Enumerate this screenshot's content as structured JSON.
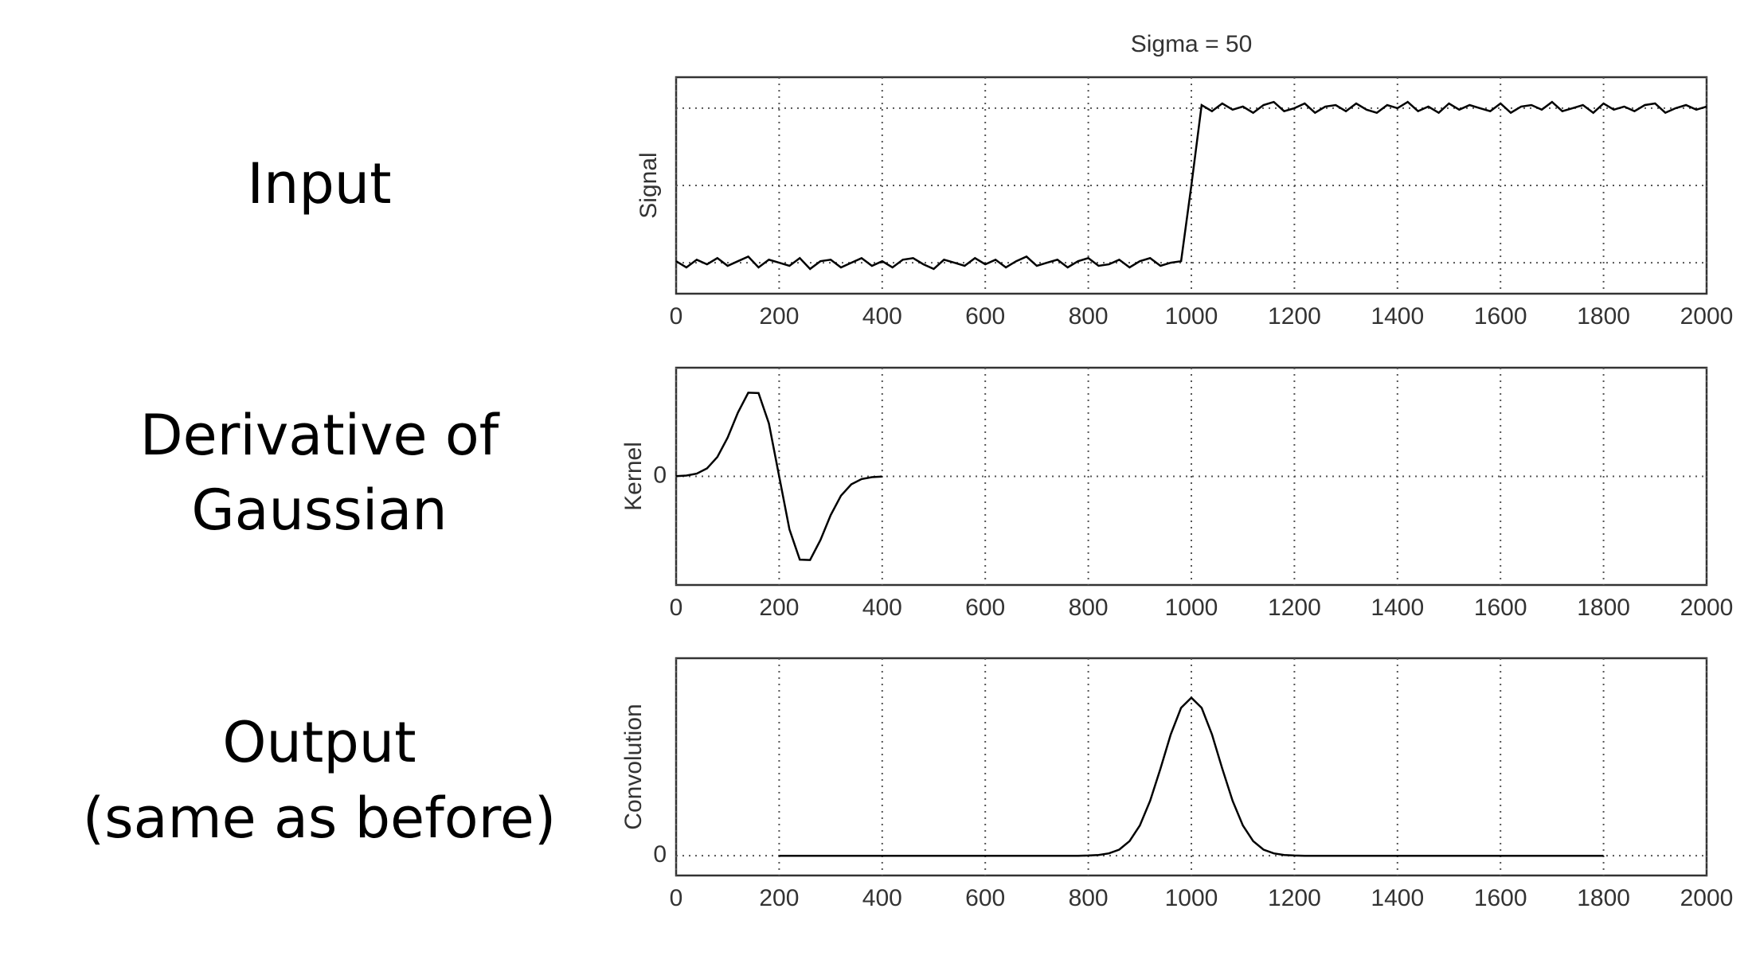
{
  "row_labels": [
    [
      "Input"
    ],
    [
      "Derivative of",
      "Gaussian"
    ],
    [
      "Output",
      "(same as before)"
    ]
  ],
  "chart_data": [
    {
      "type": "line",
      "title": "Sigma = 50",
      "ylabel": "Signal",
      "color": "#000000",
      "grid": true,
      "xlim": [
        0,
        2000
      ],
      "xticks": [
        0,
        200,
        400,
        600,
        800,
        1000,
        1200,
        1400,
        1600,
        1800,
        2000
      ],
      "ylim": [
        -0.2,
        1.2
      ],
      "ygrid": [
        0,
        0.5,
        1
      ],
      "x": [
        0,
        20,
        40,
        60,
        80,
        100,
        120,
        140,
        160,
        180,
        200,
        220,
        240,
        260,
        280,
        300,
        320,
        340,
        360,
        380,
        400,
        420,
        440,
        460,
        480,
        500,
        520,
        540,
        560,
        580,
        600,
        620,
        640,
        660,
        680,
        700,
        720,
        740,
        760,
        780,
        800,
        820,
        840,
        860,
        880,
        900,
        920,
        940,
        960,
        980,
        1000,
        1020,
        1040,
        1060,
        1080,
        1100,
        1120,
        1140,
        1160,
        1180,
        1200,
        1220,
        1240,
        1260,
        1280,
        1300,
        1320,
        1340,
        1360,
        1380,
        1400,
        1420,
        1440,
        1460,
        1480,
        1500,
        1520,
        1540,
        1560,
        1580,
        1600,
        1620,
        1640,
        1660,
        1680,
        1700,
        1720,
        1740,
        1760,
        1780,
        1800,
        1820,
        1840,
        1860,
        1880,
        1900,
        1920,
        1940,
        1960,
        1980,
        2000
      ],
      "values": [
        0.01,
        -0.03,
        0.02,
        -0.01,
        0.03,
        -0.02,
        0.01,
        0.04,
        -0.03,
        0.02,
        0,
        -0.02,
        0.03,
        -0.04,
        0.01,
        0.02,
        -0.03,
        0,
        0.03,
        -0.02,
        0.01,
        -0.03,
        0.02,
        0.03,
        -0.01,
        -0.04,
        0.02,
        0,
        -0.02,
        0.03,
        -0.01,
        0.02,
        -0.03,
        0.01,
        0.04,
        -0.02,
        0,
        0.02,
        -0.03,
        0.01,
        0.03,
        -0.02,
        -0.01,
        0.02,
        -0.03,
        0.01,
        0.03,
        -0.02,
        0,
        0.01,
        0.5,
        1.02,
        0.98,
        1.03,
        0.99,
        1.01,
        0.97,
        1.02,
        1.04,
        0.98,
        1,
        1.03,
        0.97,
        1.01,
        1.02,
        0.98,
        1.03,
        0.99,
        0.97,
        1.02,
        1,
        1.04,
        0.98,
        1.01,
        0.97,
        1.03,
        0.99,
        1.02,
        1,
        0.98,
        1.03,
        0.97,
        1.01,
        1.02,
        0.99,
        1.04,
        0.98,
        1,
        1.02,
        0.97,
        1.03,
        0.99,
        1.01,
        0.98,
        1.02,
        1.03,
        0.97,
        1,
        1.02,
        0.99,
        1.01
      ]
    },
    {
      "type": "line",
      "ylabel": "Kernel",
      "color": "#000000",
      "grid": true,
      "xlim": [
        0,
        2000
      ],
      "xticks": [
        0,
        200,
        400,
        600,
        800,
        1000,
        1200,
        1400,
        1600,
        1800,
        2000
      ],
      "ylim": [
        -1,
        1
      ],
      "yticks": [
        0
      ],
      "x": [
        0,
        20,
        40,
        60,
        80,
        100,
        120,
        140,
        160,
        180,
        200,
        220,
        240,
        260,
        280,
        300,
        320,
        340,
        360,
        380,
        400
      ],
      "values": [
        0.002,
        0.007,
        0.025,
        0.073,
        0.178,
        0.357,
        0.587,
        0.77,
        0.766,
        0.487,
        0,
        -0.487,
        -0.766,
        -0.77,
        -0.587,
        -0.357,
        -0.178,
        -0.073,
        -0.025,
        -0.007,
        -0.002
      ]
    },
    {
      "type": "line",
      "ylabel": "Convolution",
      "color": "#000000",
      "grid": true,
      "xlim": [
        0,
        2000
      ],
      "xticks": [
        0,
        200,
        400,
        600,
        800,
        1000,
        1200,
        1400,
        1600,
        1800,
        2000
      ],
      "ylim": [
        -0.1,
        1
      ],
      "yticks": [
        0
      ],
      "x": [
        200,
        220,
        240,
        260,
        280,
        300,
        320,
        340,
        360,
        380,
        400,
        420,
        440,
        460,
        480,
        500,
        520,
        540,
        560,
        580,
        600,
        620,
        640,
        660,
        680,
        700,
        720,
        740,
        760,
        780,
        800,
        820,
        840,
        860,
        880,
        900,
        920,
        940,
        960,
        980,
        1000,
        1020,
        1040,
        1060,
        1080,
        1100,
        1120,
        1140,
        1160,
        1180,
        1200,
        1220,
        1240,
        1260,
        1280,
        1300,
        1320,
        1340,
        1360,
        1380,
        1400,
        1420,
        1440,
        1460,
        1480,
        1500,
        1520,
        1540,
        1560,
        1580,
        1600,
        1620,
        1640,
        1660,
        1680,
        1700,
        1720,
        1740,
        1760,
        1780,
        1800
      ],
      "values": [
        0,
        0,
        0,
        0,
        0,
        0,
        0,
        0,
        0,
        0,
        0,
        0,
        0,
        0,
        0,
        0,
        0,
        0,
        0,
        0,
        0,
        0,
        0,
        0,
        0,
        0,
        0,
        0,
        0,
        0,
        0.001,
        0.004,
        0.012,
        0.031,
        0.074,
        0.153,
        0.278,
        0.441,
        0.614,
        0.749,
        0.8,
        0.749,
        0.614,
        0.441,
        0.278,
        0.153,
        0.074,
        0.031,
        0.012,
        0.004,
        0.001,
        0,
        0,
        0,
        0,
        0,
        0,
        0,
        0,
        0,
        0,
        0,
        0,
        0,
        0,
        0,
        0,
        0,
        0,
        0,
        0,
        0,
        0,
        0,
        0,
        0,
        0,
        0,
        0,
        0,
        0
      ]
    }
  ]
}
